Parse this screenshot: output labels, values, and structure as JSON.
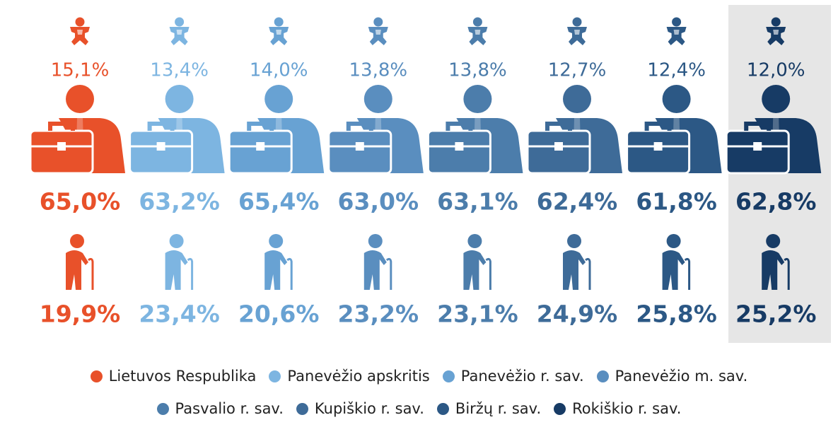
{
  "regions": [
    {
      "name": "Lietuvos Respublika",
      "color": "#e8512a",
      "children": "15,1%",
      "working": "65,0%",
      "elderly": "19,9%"
    },
    {
      "name": "Panevėžio apskritis",
      "color": "#7db5e1",
      "children": "13,4%",
      "working": "63,2%",
      "elderly": "23,4%"
    },
    {
      "name": "Panevėžio r. sav.",
      "color": "#68a2d3",
      "children": "14,0%",
      "working": "65,4%",
      "elderly": "20,6%"
    },
    {
      "name": "Panevėžio m. sav.",
      "color": "#5a8ebf",
      "children": "13,8%",
      "working": "63,0%",
      "elderly": "23,2%"
    },
    {
      "name": "Pasvalio r. sav.",
      "color": "#4c7dab",
      "children": "13,8%",
      "working": "63,1%",
      "elderly": "23,1%"
    },
    {
      "name": "Kupiškio r. sav.",
      "color": "#3e6b98",
      "children": "12,7%",
      "working": "62,4%",
      "elderly": "24,9%"
    },
    {
      "name": "Biržų r. sav.",
      "color": "#2c5885",
      "children": "12,4%",
      "working": "61,8%",
      "elderly": "25,8%"
    },
    {
      "name": "Rokiškio r. sav.",
      "color": "#173b65",
      "children": "12,0%",
      "working": "62,8%",
      "elderly": "25,2%"
    }
  ]
}
